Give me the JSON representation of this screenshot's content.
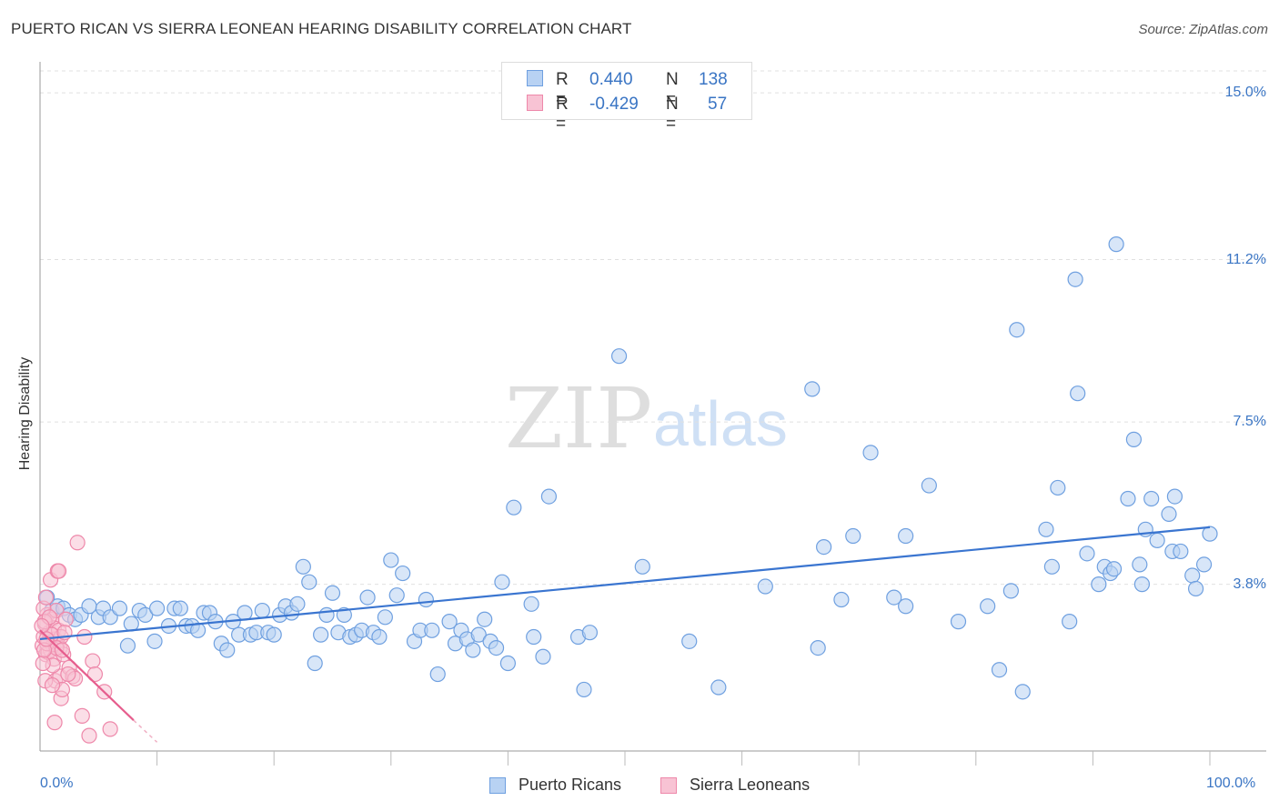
{
  "title": "PUERTO RICAN VS SIERRA LEONEAN HEARING DISABILITY CORRELATION CHART",
  "source": "Source: ZipAtlas.com",
  "watermark": {
    "zip": "ZIP",
    "atlas": "atlas"
  },
  "stats": [
    {
      "r_label": "R =",
      "r_value": "0.440",
      "n_label": "N =",
      "n_value": "138",
      "color": "#6fa0e0",
      "fill": "#b8d2f3"
    },
    {
      "r_label": "R =",
      "r_value": "-0.429",
      "n_label": "N =",
      "n_value": "57",
      "color": "#ee88aa",
      "fill": "#f8c3d4"
    }
  ],
  "legend": [
    {
      "label": "Puerto Ricans",
      "color": "#6fa0e0",
      "fill": "#b8d2f3"
    },
    {
      "label": "Sierra Leoneans",
      "color": "#ee88aa",
      "fill": "#f8c3d4"
    }
  ],
  "chart_data": {
    "type": "scatter",
    "title": "PUERTO RICAN VS SIERRA LEONEAN HEARING DISABILITY CORRELATION CHART",
    "xlabel": "",
    "ylabel": "Hearing Disability",
    "xlim": [
      0,
      100
    ],
    "ylim": [
      0,
      15.5
    ],
    "x_tick_labels": [
      "0.0%",
      "100.0%"
    ],
    "y_ticks": [
      3.8,
      7.5,
      11.2,
      15.0
    ],
    "y_tick_labels": [
      "3.8%",
      "7.5%",
      "11.2%",
      "15.0%"
    ],
    "grid": true,
    "legend_position": "bottom-center",
    "series": [
      {
        "name": "Puerto Ricans",
        "color": "#3a75d0",
        "trend": {
          "x": [
            0,
            100
          ],
          "y": [
            2.55,
            5.1
          ]
        },
        "points": [
          [
            0.6,
            3.5
          ],
          [
            1.0,
            3.2
          ],
          [
            1.5,
            3.3
          ],
          [
            2.0,
            3.25
          ],
          [
            2.5,
            3.1
          ],
          [
            3.0,
            3.0
          ],
          [
            3.5,
            3.1
          ],
          [
            4.2,
            3.3
          ],
          [
            5.0,
            3.05
          ],
          [
            5.4,
            3.25
          ],
          [
            6.0,
            3.05
          ],
          [
            6.8,
            3.25
          ],
          [
            7.5,
            2.4
          ],
          [
            7.8,
            2.9
          ],
          [
            8.5,
            3.2
          ],
          [
            9.0,
            3.1
          ],
          [
            9.8,
            2.5
          ],
          [
            10.0,
            3.25
          ],
          [
            11.0,
            2.85
          ],
          [
            11.5,
            3.25
          ],
          [
            12.0,
            3.25
          ],
          [
            12.5,
            2.85
          ],
          [
            13.0,
            2.85
          ],
          [
            13.5,
            2.75
          ],
          [
            14.0,
            3.15
          ],
          [
            14.5,
            3.15
          ],
          [
            15.0,
            2.95
          ],
          [
            15.5,
            2.45
          ],
          [
            16.0,
            2.3
          ],
          [
            16.5,
            2.95
          ],
          [
            17.0,
            2.65
          ],
          [
            17.5,
            3.15
          ],
          [
            18.0,
            2.65
          ],
          [
            18.5,
            2.7
          ],
          [
            19.0,
            3.2
          ],
          [
            19.5,
            2.7
          ],
          [
            20.0,
            2.65
          ],
          [
            20.5,
            3.1
          ],
          [
            21.0,
            3.3
          ],
          [
            21.5,
            3.15
          ],
          [
            22.0,
            3.35
          ],
          [
            22.5,
            4.2
          ],
          [
            23.0,
            3.85
          ],
          [
            23.5,
            2.0
          ],
          [
            24.0,
            2.65
          ],
          [
            24.5,
            3.1
          ],
          [
            25.0,
            3.6
          ],
          [
            25.5,
            2.7
          ],
          [
            26.0,
            3.1
          ],
          [
            26.5,
            2.6
          ],
          [
            27.0,
            2.65
          ],
          [
            27.5,
            2.75
          ],
          [
            28.0,
            3.5
          ],
          [
            28.5,
            2.7
          ],
          [
            29.0,
            2.6
          ],
          [
            29.5,
            3.05
          ],
          [
            30.0,
            4.35
          ],
          [
            30.5,
            3.55
          ],
          [
            31.0,
            4.05
          ],
          [
            32.0,
            2.5
          ],
          [
            32.5,
            2.75
          ],
          [
            33.0,
            3.45
          ],
          [
            33.5,
            2.75
          ],
          [
            34.0,
            1.75
          ],
          [
            35.0,
            2.95
          ],
          [
            35.5,
            2.45
          ],
          [
            36.0,
            2.75
          ],
          [
            36.5,
            2.55
          ],
          [
            37.0,
            2.3
          ],
          [
            37.5,
            2.65
          ],
          [
            38.0,
            3.0
          ],
          [
            38.5,
            2.5
          ],
          [
            39.0,
            2.35
          ],
          [
            39.5,
            3.85
          ],
          [
            40.0,
            2.0
          ],
          [
            40.5,
            5.55
          ],
          [
            42.0,
            3.35
          ],
          [
            42.2,
            2.6
          ],
          [
            43.0,
            2.15
          ],
          [
            43.5,
            5.8
          ],
          [
            46.0,
            2.6
          ],
          [
            46.5,
            1.4
          ],
          [
            47.0,
            2.7
          ],
          [
            49.5,
            9.0
          ],
          [
            51.5,
            4.2
          ],
          [
            55.5,
            2.5
          ],
          [
            58.0,
            1.45
          ],
          [
            62.0,
            3.75
          ],
          [
            66.5,
            2.35
          ],
          [
            66.0,
            8.25
          ],
          [
            67.0,
            4.65
          ],
          [
            68.5,
            3.45
          ],
          [
            69.5,
            4.9
          ],
          [
            71.0,
            6.8
          ],
          [
            73.0,
            3.5
          ],
          [
            74.0,
            3.3
          ],
          [
            76.0,
            6.05
          ],
          [
            74.0,
            4.9
          ],
          [
            78.5,
            2.95
          ],
          [
            81.0,
            3.3
          ],
          [
            82.0,
            1.85
          ],
          [
            83.0,
            3.65
          ],
          [
            83.5,
            9.6
          ],
          [
            84.0,
            1.35
          ],
          [
            86.5,
            4.2
          ],
          [
            86.0,
            5.05
          ],
          [
            87.0,
            6.0
          ],
          [
            88.0,
            2.95
          ],
          [
            88.5,
            10.75
          ],
          [
            88.7,
            8.15
          ],
          [
            89.5,
            4.5
          ],
          [
            90.5,
            3.8
          ],
          [
            91.0,
            4.2
          ],
          [
            91.5,
            4.05
          ],
          [
            91.8,
            4.15
          ],
          [
            92.0,
            11.55
          ],
          [
            93.0,
            5.75
          ],
          [
            93.5,
            7.1
          ],
          [
            94.0,
            4.25
          ],
          [
            94.2,
            3.8
          ],
          [
            94.5,
            5.05
          ],
          [
            95.0,
            5.75
          ],
          [
            95.5,
            4.8
          ],
          [
            96.5,
            5.4
          ],
          [
            96.8,
            4.55
          ],
          [
            97.0,
            5.8
          ],
          [
            97.5,
            4.55
          ],
          [
            98.5,
            4.0
          ],
          [
            98.8,
            3.7
          ],
          [
            99.5,
            4.25
          ],
          [
            100.0,
            4.95
          ]
        ]
      },
      {
        "name": "Sierra Leoneans",
        "color": "#e65d8d",
        "trend": {
          "x": [
            0,
            8.0
          ],
          "y": [
            2.75,
            0.7
          ]
        },
        "trend_extension": {
          "x": [
            8.0,
            10.0
          ],
          "y": [
            0.7,
            0.2
          ]
        },
        "points": [
          [
            0.2,
            2.4
          ],
          [
            0.3,
            2.6
          ],
          [
            0.4,
            2.9
          ],
          [
            0.5,
            2.2
          ],
          [
            0.6,
            3.1
          ],
          [
            0.7,
            2.5
          ],
          [
            0.8,
            2.7
          ],
          [
            0.9,
            2.3
          ],
          [
            1.0,
            3.0
          ],
          [
            1.1,
            2.4
          ],
          [
            1.2,
            2.8
          ],
          [
            1.3,
            2.55
          ],
          [
            1.4,
            3.2
          ],
          [
            1.5,
            2.45
          ],
          [
            1.6,
            2.75
          ],
          [
            1.7,
            2.35
          ],
          [
            1.8,
            2.6
          ],
          [
            0.3,
            3.25
          ],
          [
            0.5,
            3.5
          ],
          [
            0.9,
            3.9
          ],
          [
            0.4,
            2.95
          ],
          [
            0.7,
            2.25
          ],
          [
            1.0,
            2.65
          ],
          [
            1.2,
            2.1
          ],
          [
            1.3,
            1.6
          ],
          [
            1.5,
            4.1
          ],
          [
            1.6,
            4.1
          ],
          [
            1.7,
            1.7
          ],
          [
            1.8,
            1.2
          ],
          [
            1.9,
            1.4
          ],
          [
            2.0,
            2.2
          ],
          [
            2.2,
            3.0
          ],
          [
            2.5,
            1.9
          ],
          [
            2.8,
            1.7
          ],
          [
            3.0,
            1.65
          ],
          [
            3.2,
            4.75
          ],
          [
            3.6,
            0.8
          ],
          [
            3.8,
            2.6
          ],
          [
            4.2,
            0.35
          ],
          [
            4.5,
            2.05
          ],
          [
            4.7,
            1.75
          ],
          [
            5.5,
            1.35
          ],
          [
            6.0,
            0.5
          ],
          [
            1.1,
            1.95
          ],
          [
            0.6,
            2.45
          ],
          [
            0.8,
            3.05
          ],
          [
            1.4,
            2.35
          ],
          [
            1.9,
            2.3
          ],
          [
            2.1,
            2.7
          ],
          [
            0.25,
            2.0
          ],
          [
            0.45,
            1.6
          ],
          [
            1.05,
            1.5
          ],
          [
            1.25,
            0.65
          ],
          [
            2.4,
            1.75
          ],
          [
            0.15,
            2.85
          ],
          [
            0.35,
            2.3
          ],
          [
            0.55,
            2.55
          ]
        ]
      }
    ]
  }
}
